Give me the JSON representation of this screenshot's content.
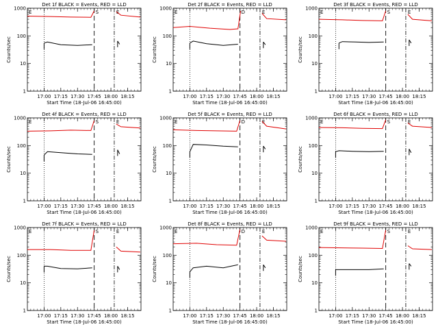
{
  "figure": {
    "ylabel": "Counts/sec",
    "yticks": [
      "1",
      "10",
      "100",
      "1000"
    ],
    "xticks": [
      "17:00",
      "17:15",
      "17:30",
      "17:45",
      "18:00",
      "18:15"
    ],
    "xlabel": "Start Time (18-Jul-06 16:45:00)",
    "colors": {
      "events": "#000000",
      "lld": "#e00000",
      "axes": "#000000"
    }
  },
  "chart_data": [
    {
      "type": "line",
      "title": "Det 1f BLACK = Events, RED = LLD",
      "flags": [
        "E",
        "S",
        "E"
      ],
      "xlim": [
        16.75,
        18.45
      ],
      "ylim": [
        1,
        1000
      ],
      "yscale": "log",
      "x_unit": "hours UT",
      "markers": {
        "dotted": [
          17.0
        ],
        "dashed": [
          17.75
        ],
        "dashdot": [
          18.05
        ]
      },
      "series": [
        {
          "name": "Events",
          "color": "#000000",
          "segments": [
            {
              "x": [
                17.0,
                17.05,
                17.25,
                17.5,
                17.72
              ],
              "y": [
                55,
                60,
                48,
                45,
                48
              ]
            },
            {
              "x": [
                18.1,
                18.13
              ],
              "y": [
                65,
                50
              ]
            }
          ]
        },
        {
          "name": "LLD",
          "color": "#e00000",
          "segments": [
            {
              "x": [
                16.75,
                17.1,
                17.4,
                17.7,
                17.75
              ],
              "y": [
                520,
                500,
                480,
                470,
                800
              ]
            },
            {
              "x": [
                18.08,
                18.15,
                18.44
              ],
              "y": [
                750,
                560,
                480
              ]
            }
          ]
        }
      ]
    },
    {
      "type": "line",
      "title": "Det 2f BLACK = Events, RED = LLD",
      "flags": [
        "E",
        "D",
        "E"
      ],
      "xlim": [
        16.75,
        18.45
      ],
      "ylim": [
        1,
        1000
      ],
      "yscale": "log",
      "x_unit": "hours UT",
      "markers": {
        "dotted": [
          17.0
        ],
        "dashed": [
          17.75
        ],
        "dashdot": [
          18.05
        ]
      },
      "series": [
        {
          "name": "Events",
          "color": "#000000",
          "segments": [
            {
              "x": [
                17.0,
                17.05,
                17.25,
                17.5,
                17.72
              ],
              "y": [
                55,
                65,
                52,
                45,
                50
              ]
            },
            {
              "x": [
                18.1,
                18.13
              ],
              "y": [
                60,
                48
              ]
            }
          ]
        },
        {
          "name": "LLD",
          "color": "#e00000",
          "segments": [
            {
              "x": [
                16.75,
                17.0,
                17.3,
                17.6,
                17.72,
                17.76
              ],
              "y": [
                200,
                220,
                190,
                170,
                180,
                800
              ]
            },
            {
              "x": [
                18.08,
                18.15,
                18.44
              ],
              "y": [
                650,
                420,
                380
              ]
            }
          ]
        }
      ]
    },
    {
      "type": "line",
      "title": "Det 3f BLACK = Events, RED = LLD",
      "flags": [
        "E",
        "S",
        "E"
      ],
      "xlim": [
        16.75,
        18.45
      ],
      "ylim": [
        1,
        1000
      ],
      "yscale": "log",
      "x_unit": "hours UT",
      "markers": {
        "dotted": [
          17.0
        ],
        "dashed": [
          17.75
        ],
        "dashdot": [
          18.05
        ]
      },
      "series": [
        {
          "name": "Events",
          "color": "#000000",
          "segments": [
            {
              "x": [
                17.05,
                17.1,
                17.3,
                17.5,
                17.72
              ],
              "y": [
                55,
                62,
                60,
                58,
                60
              ]
            },
            {
              "x": [
                18.1,
                18.13
              ],
              "y": [
                72,
                55
              ]
            }
          ]
        },
        {
          "name": "LLD",
          "color": "#e00000",
          "segments": [
            {
              "x": [
                16.75,
                17.1,
                17.4,
                17.7,
                17.75
              ],
              "y": [
                400,
                380,
                360,
                350,
                800
              ]
            },
            {
              "x": [
                18.08,
                18.15,
                18.44
              ],
              "y": [
                600,
                400,
                350
              ]
            }
          ]
        }
      ]
    },
    {
      "type": "line",
      "title": "Det 4f BLACK = Events, RED = LLD",
      "flags": [
        "E",
        "S",
        "E"
      ],
      "xlim": [
        16.75,
        18.45
      ],
      "ylim": [
        1,
        1000
      ],
      "yscale": "log",
      "x_unit": "hours UT",
      "markers": {
        "dotted": [
          17.0
        ],
        "dashed": [
          17.75
        ],
        "dashdot": [
          18.05
        ]
      },
      "series": [
        {
          "name": "Events",
          "color": "#000000",
          "segments": [
            {
              "x": [
                17.0,
                17.05,
                17.25,
                17.5,
                17.72
              ],
              "y": [
                45,
                60,
                55,
                50,
                48
              ]
            },
            {
              "x": [
                18.1,
                18.13
              ],
              "y": [
                70,
                50
              ]
            }
          ]
        },
        {
          "name": "LLD",
          "color": "#e00000",
          "segments": [
            {
              "x": [
                16.75,
                17.1,
                17.4,
                17.7,
                17.75
              ],
              "y": [
                330,
                340,
                360,
                350,
                800
              ]
            },
            {
              "x": [
                18.08,
                18.15,
                18.44
              ],
              "y": [
                600,
                480,
                430
              ]
            }
          ]
        }
      ]
    },
    {
      "type": "line",
      "title": "Det 5f BLACK = Events, RED = LLD",
      "flags": [
        "E",
        "D",
        "E"
      ],
      "xlim": [
        16.75,
        18.45
      ],
      "ylim": [
        1,
        1000
      ],
      "yscale": "log",
      "x_unit": "hours UT",
      "markers": {
        "dotted": [
          17.0
        ],
        "dashed": [
          17.75
        ],
        "dashdot": [
          18.05
        ]
      },
      "series": [
        {
          "name": "Events",
          "color": "#000000",
          "segments": [
            {
              "x": [
                17.0,
                17.05,
                17.25,
                17.5,
                17.72
              ],
              "y": [
                60,
                110,
                105,
                95,
                90
              ]
            },
            {
              "x": [
                18.1,
                18.13
              ],
              "y": [
                95,
                75
              ]
            }
          ]
        },
        {
          "name": "LLD",
          "color": "#e00000",
          "segments": [
            {
              "x": [
                16.75,
                17.1,
                17.4,
                17.7,
                17.75
              ],
              "y": [
                370,
                350,
                340,
                330,
                800
              ]
            },
            {
              "x": [
                18.08,
                18.15,
                18.44
              ],
              "y": [
                750,
                500,
                400
              ]
            }
          ]
        }
      ]
    },
    {
      "type": "line",
      "title": "Det 6f BLACK = Events, RED = LLD",
      "flags": [
        "E",
        "S",
        "E"
      ],
      "xlim": [
        16.75,
        18.45
      ],
      "ylim": [
        1,
        1000
      ],
      "yscale": "log",
      "x_unit": "hours UT",
      "markers": {
        "dotted": [
          17.0
        ],
        "dashed": [
          17.75
        ],
        "dashdot": [
          18.05
        ]
      },
      "series": [
        {
          "name": "Events",
          "color": "#000000",
          "segments": [
            {
              "x": [
                17.0,
                17.05,
                17.25,
                17.5,
                17.72
              ],
              "y": [
                60,
                65,
                62,
                60,
                62
              ]
            },
            {
              "x": [
                18.1,
                18.13
              ],
              "y": [
                75,
                55
              ]
            }
          ]
        },
        {
          "name": "LLD",
          "color": "#e00000",
          "segments": [
            {
              "x": [
                16.75,
                17.1,
                17.4,
                17.7,
                17.75
              ],
              "y": [
                450,
                440,
                420,
                410,
                850
              ]
            },
            {
              "x": [
                18.08,
                18.15,
                18.44
              ],
              "y": [
                650,
                500,
                450
              ]
            }
          ]
        }
      ]
    },
    {
      "type": "line",
      "title": "Det 7f BLACK = Events, RED = LLD",
      "flags": [
        "E",
        "S",
        "E"
      ],
      "xlim": [
        16.75,
        18.45
      ],
      "ylim": [
        1,
        1000
      ],
      "yscale": "log",
      "x_unit": "hours UT",
      "markers": {
        "dotted": [
          17.0
        ],
        "dashed": [
          17.75
        ],
        "dashdot": [
          18.05
        ]
      },
      "series": [
        {
          "name": "Events",
          "color": "#000000",
          "segments": [
            {
              "x": [
                17.0,
                17.05,
                17.25,
                17.5,
                17.72
              ],
              "y": [
                40,
                40,
                33,
                32,
                35
              ]
            },
            {
              "x": [
                18.1,
                18.13
              ],
              "y": [
                40,
                30
              ]
            }
          ]
        },
        {
          "name": "LLD",
          "color": "#e00000",
          "segments": [
            {
              "x": [
                16.75,
                17.1,
                17.4,
                17.7,
                17.75
              ],
              "y": [
                160,
                160,
                150,
                150,
                800
              ]
            },
            {
              "x": [
                18.08,
                18.15,
                18.44
              ],
              "y": [
                200,
                140,
                130
              ]
            }
          ]
        }
      ]
    },
    {
      "type": "line",
      "title": "Det 8f BLACK = Events, RED = LLD",
      "flags": [
        "E",
        "D",
        "E"
      ],
      "xlim": [
        16.75,
        18.45
      ],
      "ylim": [
        1,
        1000
      ],
      "yscale": "log",
      "x_unit": "hours UT",
      "markers": {
        "dotted": [
          17.0
        ],
        "dashed": [
          17.75
        ],
        "dashdot": [
          18.05
        ]
      },
      "series": [
        {
          "name": "Events",
          "color": "#000000",
          "segments": [
            {
              "x": [
                17.0,
                17.05,
                17.25,
                17.5,
                17.72
              ],
              "y": [
                25,
                35,
                40,
                35,
                45
              ]
            },
            {
              "x": [
                18.1,
                18.13
              ],
              "y": [
                45,
                35
              ]
            }
          ]
        },
        {
          "name": "LLD",
          "color": "#e00000",
          "segments": [
            {
              "x": [
                16.75,
                17.1,
                17.4,
                17.7,
                17.75
              ],
              "y": [
                260,
                270,
                240,
                230,
                850
              ]
            },
            {
              "x": [
                18.08,
                18.15,
                18.44
              ],
              "y": [
                500,
                350,
                320
              ]
            }
          ]
        }
      ]
    },
    {
      "type": "line",
      "title": "Det 9f BLACK = Events, RED = LLD",
      "flags": [
        "E",
        "S",
        "E"
      ],
      "xlim": [
        16.75,
        18.45
      ],
      "ylim": [
        1,
        1000
      ],
      "yscale": "log",
      "x_unit": "hours UT",
      "markers": {
        "dotted": [
          17.0
        ],
        "dashed": [
          17.75
        ],
        "dashdot": [
          18.05
        ]
      },
      "series": [
        {
          "name": "Events",
          "color": "#000000",
          "segments": [
            {
              "x": [
                17.0,
                17.05,
                17.25,
                17.5,
                17.72
              ],
              "y": [
                30,
                30,
                30,
                30,
                32
              ]
            },
            {
              "x": [
                18.1,
                18.13
              ],
              "y": [
                50,
                40
              ]
            }
          ]
        },
        {
          "name": "LLD",
          "color": "#e00000",
          "segments": [
            {
              "x": [
                16.75,
                17.1,
                17.4,
                17.7,
                17.75
              ],
              "y": [
                190,
                185,
                180,
                175,
                800
              ]
            },
            {
              "x": [
                18.08,
                18.15,
                18.44
              ],
              "y": [
                220,
                170,
                160
              ]
            }
          ]
        }
      ]
    }
  ]
}
